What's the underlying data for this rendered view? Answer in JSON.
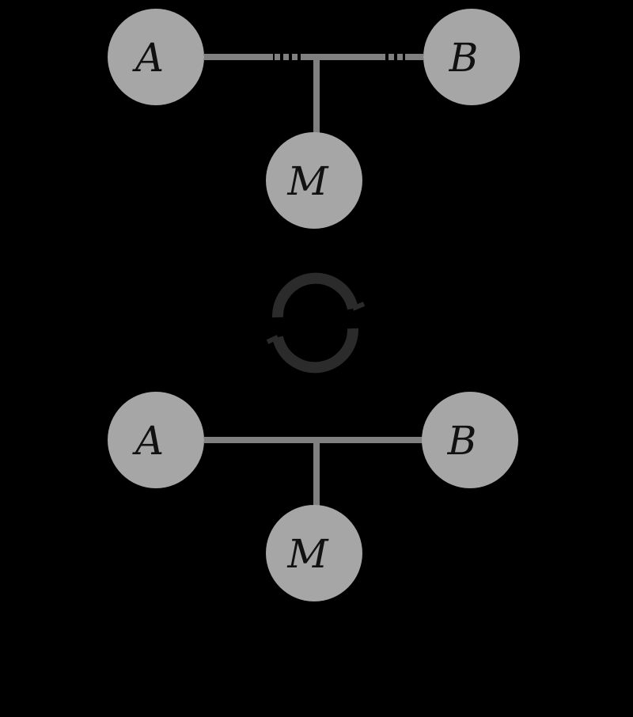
{
  "colors": {
    "background": "#000000",
    "node_fill": "#a6a6a6",
    "node_text": "#111111",
    "edge": "#808080",
    "cycle_icon": "#2b2b2b"
  },
  "top_graph": {
    "node_a": {
      "label": "A"
    },
    "node_b": {
      "label": "B"
    },
    "node_m": {
      "label": "M"
    },
    "edge_style": "dashed-outer"
  },
  "cycle_symbol": {
    "icon": "cycle-icon"
  },
  "bottom_graph": {
    "node_a": {
      "label": "A"
    },
    "node_b": {
      "label": "B"
    },
    "node_m": {
      "label": "M"
    },
    "edge_style": "solid"
  }
}
